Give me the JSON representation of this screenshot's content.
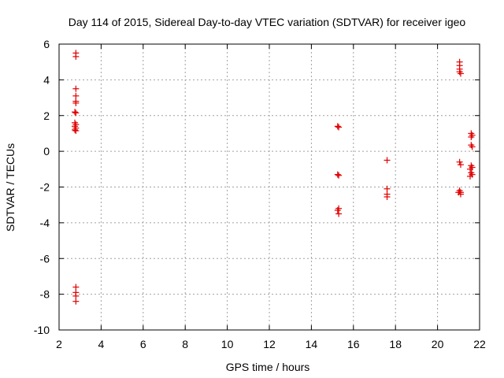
{
  "chart_data": {
    "type": "scatter",
    "title": "Day 114 of 2015, Sidereal Day-to-day VTEC variation (SDTVAR) for receiver igeo",
    "xlabel": "GPS time / hours",
    "ylabel": "SDTVAR / TECUs",
    "xlim": [
      2,
      22
    ],
    "ylim": [
      -10,
      6
    ],
    "xticks": [
      2,
      4,
      6,
      8,
      10,
      12,
      14,
      16,
      18,
      20,
      22
    ],
    "yticks": [
      -10,
      -8,
      -6,
      -4,
      -2,
      0,
      2,
      4,
      6
    ],
    "grid": true,
    "marker": "plus",
    "series": [
      {
        "name": "SDTVAR",
        "color": "#e00000",
        "points": [
          [
            2.8,
            5.5
          ],
          [
            2.8,
            5.3
          ],
          [
            2.8,
            3.5
          ],
          [
            2.8,
            3.1
          ],
          [
            2.8,
            2.8
          ],
          [
            2.8,
            2.7
          ],
          [
            2.75,
            2.2
          ],
          [
            2.8,
            2.15
          ],
          [
            2.75,
            1.6
          ],
          [
            2.8,
            1.5
          ],
          [
            2.75,
            1.4
          ],
          [
            2.8,
            1.3
          ],
          [
            2.75,
            1.2
          ],
          [
            2.8,
            1.15
          ],
          [
            2.8,
            -7.6
          ],
          [
            2.8,
            -7.9
          ],
          [
            2.8,
            -8.1
          ],
          [
            2.8,
            -8.4
          ],
          [
            15.25,
            1.4
          ],
          [
            15.3,
            1.35
          ],
          [
            15.25,
            -1.3
          ],
          [
            15.3,
            -1.35
          ],
          [
            15.3,
            -3.2
          ],
          [
            15.25,
            -3.3
          ],
          [
            15.3,
            -3.5
          ],
          [
            17.6,
            -0.5
          ],
          [
            17.6,
            -2.1
          ],
          [
            17.6,
            -2.4
          ],
          [
            17.6,
            -2.55
          ],
          [
            21.05,
            5.0
          ],
          [
            21.05,
            4.8
          ],
          [
            21.05,
            4.6
          ],
          [
            21.05,
            4.45
          ],
          [
            21.1,
            4.35
          ],
          [
            21.05,
            -0.6
          ],
          [
            21.1,
            -0.75
          ],
          [
            21.05,
            -2.2
          ],
          [
            21.1,
            -2.3
          ],
          [
            21.0,
            -2.3
          ],
          [
            21.1,
            -2.4
          ],
          [
            21.6,
            1.0
          ],
          [
            21.65,
            0.9
          ],
          [
            21.6,
            0.8
          ],
          [
            21.6,
            0.35
          ],
          [
            21.65,
            0.25
          ],
          [
            21.6,
            -0.8
          ],
          [
            21.65,
            -0.9
          ],
          [
            21.55,
            -1.0
          ],
          [
            21.6,
            -1.2
          ],
          [
            21.65,
            -1.3
          ],
          [
            21.55,
            -1.4
          ]
        ]
      }
    ]
  }
}
